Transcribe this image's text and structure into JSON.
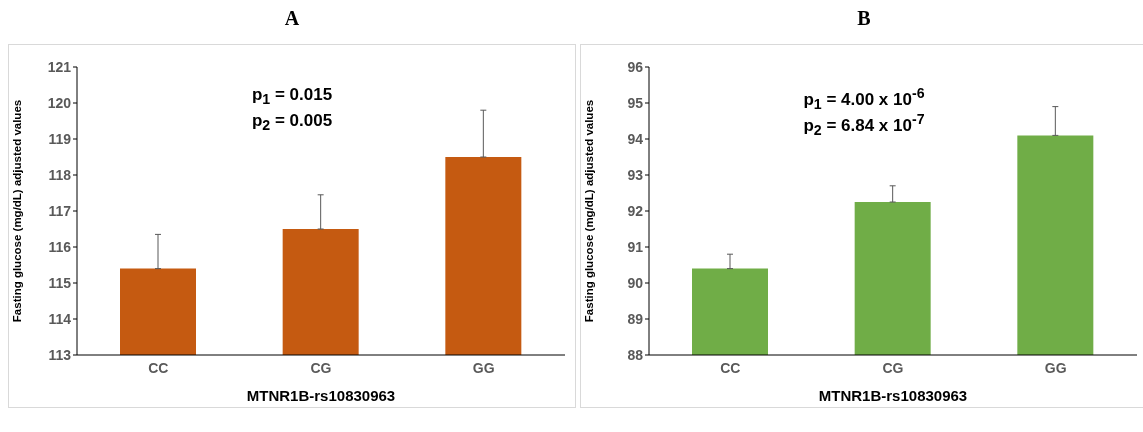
{
  "chart_data": [
    {
      "type": "bar",
      "title": "A",
      "ylabel": "Fasting glucose (mg/dL) adjusted values",
      "xlabel": "MTNR1B-rs10830963",
      "categories": [
        "CC",
        "CG",
        "GG"
      ],
      "values": [
        115.4,
        116.5,
        118.5
      ],
      "color": "#c55a11",
      "errors": [
        [
          115.4,
          116.35
        ],
        [
          116.5,
          117.45
        ],
        [
          118.5,
          119.8
        ]
      ],
      "ylim": [
        113,
        121
      ],
      "yticks": [
        113,
        114,
        115,
        116,
        117,
        118,
        119,
        120,
        121
      ],
      "annotations": [
        "p$_{1}$ = 0.015",
        "p$_{2}$ = 0.005"
      ]
    },
    {
      "type": "bar",
      "title": "B",
      "ylabel": "Fasting glucose (mg/dL) adjusted values",
      "xlabel": "MTNR1B-rs10830963",
      "categories": [
        "CC",
        "CG",
        "GG"
      ],
      "values": [
        90.4,
        92.25,
        94.1
      ],
      "color": "#70ad47",
      "errors": [
        [
          90.4,
          90.8
        ],
        [
          92.25,
          92.7
        ],
        [
          94.1,
          94.9
        ]
      ],
      "ylim": [
        88,
        96
      ],
      "yticks": [
        88,
        89,
        90,
        91,
        92,
        93,
        94,
        95,
        96
      ],
      "annotations": [
        "p$_{1}$ = 4.00 x 10$^{-6}$",
        "p$_{2}$ = 6.84 x 10$^{-7}$"
      ]
    }
  ]
}
